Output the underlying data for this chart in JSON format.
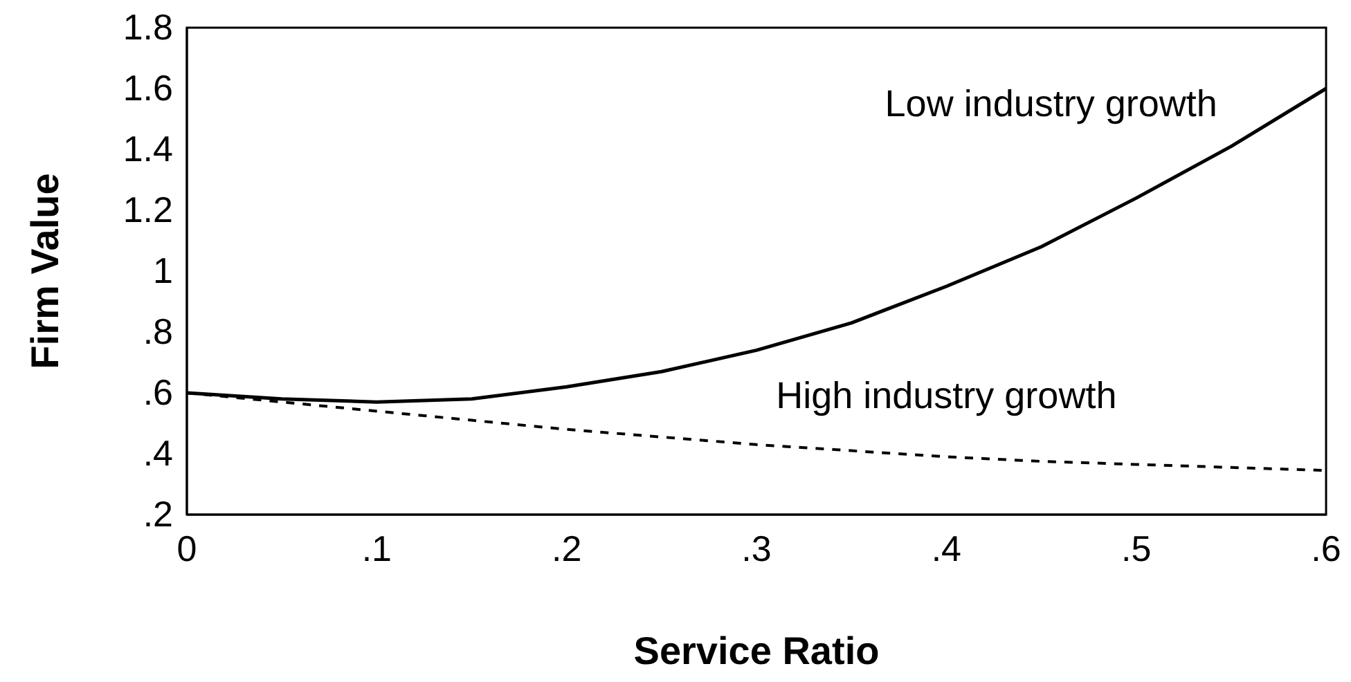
{
  "chart_data": {
    "type": "line",
    "xlabel": "Service Ratio",
    "ylabel": "Firm Value",
    "xlim": [
      0,
      0.6
    ],
    "ylim": [
      0.2,
      1.8
    ],
    "xticks": [
      0,
      {
        "value": 0.1,
        "label": ".1"
      },
      {
        "value": 0.2,
        "label": ".2"
      },
      {
        "value": 0.3,
        "label": ".3"
      },
      {
        "value": 0.4,
        "label": ".4"
      },
      {
        "value": 0.5,
        "label": ".5"
      },
      {
        "value": 0.6,
        "label": ".6"
      }
    ],
    "yticks": [
      {
        "value": 0.2,
        "label": ".2"
      },
      {
        "value": 0.4,
        "label": ".4"
      },
      {
        "value": 0.6,
        "label": ".6"
      },
      {
        "value": 0.8,
        "label": ".8"
      },
      1,
      {
        "value": 1.2,
        "label": "1.2"
      },
      {
        "value": 1.4,
        "label": "1.4"
      },
      {
        "value": 1.6,
        "label": "1.6"
      },
      {
        "value": 1.8,
        "label": "1.8"
      }
    ],
    "x": [
      0,
      0.05,
      0.1,
      0.15,
      0.2,
      0.25,
      0.3,
      0.35,
      0.4,
      0.45,
      0.5,
      0.55,
      0.6
    ],
    "series": [
      {
        "name": "Low industry growth",
        "color": "#000000",
        "line_style": "solid",
        "values": [
          0.6,
          0.58,
          0.57,
          0.58,
          0.62,
          0.67,
          0.74,
          0.83,
          0.95,
          1.08,
          1.24,
          1.41,
          1.6
        ]
      },
      {
        "name": "High industry growth",
        "color": "#000000",
        "line_style": "dashed",
        "values": [
          0.6,
          0.57,
          0.54,
          0.51,
          0.48,
          0.455,
          0.43,
          0.41,
          0.39,
          0.375,
          0.365,
          0.355,
          0.345
        ]
      }
    ],
    "grid": false,
    "legend": false,
    "marker": "none"
  }
}
